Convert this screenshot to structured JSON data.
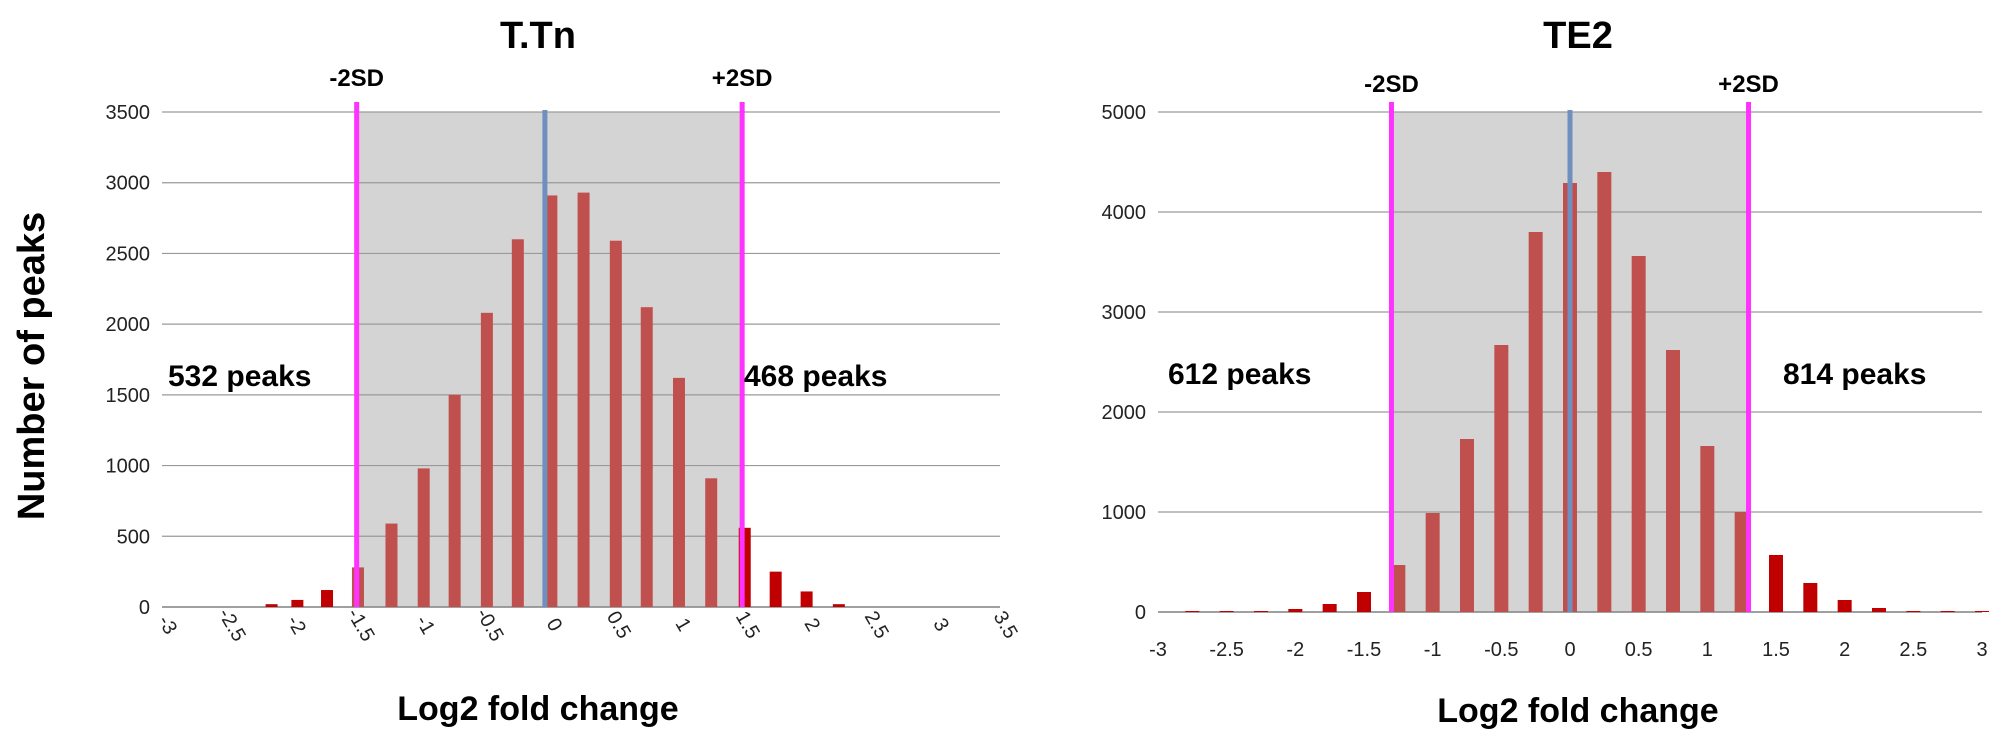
{
  "shared_ylabel": "Number of peaks",
  "chart_data": [
    {
      "type": "bar",
      "title": "T.Tn",
      "xlabel": "Log2 fold change",
      "ylabel": "Number of peaks",
      "ylim": [
        0,
        3500
      ],
      "yticks": [
        0,
        500,
        1000,
        1500,
        2000,
        2500,
        3000,
        3500
      ],
      "xlim": [
        -3,
        3.5
      ],
      "xticks": [
        -3,
        -2.5,
        -2,
        -1.5,
        -1,
        -0.5,
        0,
        0.5,
        1,
        1.5,
        2,
        2.5,
        3,
        3.5
      ],
      "xtick_rotation": 60,
      "bar_centers": [
        -2.15,
        -1.95,
        -1.72,
        -1.48,
        -1.22,
        -0.97,
        -0.73,
        -0.48,
        -0.24,
        0.02,
        0.27,
        0.52,
        0.76,
        1.01,
        1.26,
        1.52,
        1.76,
        2.0,
        2.25
      ],
      "values": [
        20,
        50,
        120,
        280,
        590,
        980,
        1500,
        2080,
        2600,
        2910,
        2930,
        2590,
        2120,
        1620,
        910,
        560,
        250,
        110,
        20
      ],
      "markers": {
        "sd_minus": {
          "x": -1.49,
          "label": "-2SD"
        },
        "sd_plus": {
          "x": 1.5,
          "label": "+2SD"
        },
        "center": {
          "x": -0.03
        }
      },
      "shaded_region": [
        -1.49,
        1.5
      ],
      "annotations": {
        "left": "532 peaks",
        "right": "468 peaks"
      },
      "grid": true,
      "colors": {
        "bar_inside": "#c0504d",
        "bar_outside": "#c00000",
        "sd_line": "#ff33ff",
        "center_line": "#6f8fbf",
        "shade": "#d4d4d4"
      }
    },
    {
      "type": "bar",
      "title": "TE2",
      "xlabel": "Log2 fold change",
      "ylabel": "",
      "ylim": [
        0,
        5000
      ],
      "yticks": [
        0,
        1000,
        2000,
        3000,
        4000,
        5000
      ],
      "xlim": [
        -3,
        3
      ],
      "xticks": [
        -3,
        -2.5,
        -2,
        -1.5,
        -1,
        -0.5,
        0,
        0.5,
        1,
        1.5,
        2,
        2.5,
        3
      ],
      "xtick_rotation": 0,
      "bar_centers": [
        -2.75,
        -2.5,
        -2.25,
        -2.0,
        -1.75,
        -1.5,
        -1.25,
        -1.0,
        -0.75,
        -0.5,
        -0.25,
        0.0,
        0.25,
        0.5,
        0.75,
        1.0,
        1.25,
        1.5,
        1.75,
        2.0,
        2.25,
        2.5,
        2.75,
        3.0
      ],
      "values": [
        5,
        5,
        10,
        30,
        80,
        200,
        470,
        990,
        1730,
        2670,
        3800,
        4290,
        4400,
        3560,
        2620,
        1660,
        1000,
        570,
        290,
        120,
        40,
        10,
        5,
        5
      ],
      "markers": {
        "sd_minus": {
          "x": -1.3,
          "label": "-2SD"
        },
        "sd_plus": {
          "x": 1.3,
          "label": "+2SD"
        },
        "center": {
          "x": 0.0
        }
      },
      "shaded_region": [
        -1.3,
        1.3
      ],
      "annotations": {
        "left": "612 peaks",
        "right": "814 peaks"
      },
      "grid": true,
      "colors": {
        "bar_inside": "#c0504d",
        "bar_outside": "#c00000",
        "sd_line": "#ff33ff",
        "center_line": "#6f8fbf",
        "shade": "#d4d4d4"
      }
    }
  ]
}
